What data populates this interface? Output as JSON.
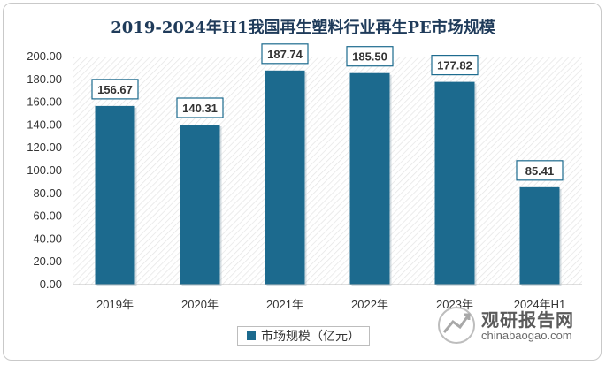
{
  "chart_data": {
    "type": "bar",
    "title": "2019-2024年H1我国再生塑料行业再生PE市场规模",
    "categories": [
      "2019年",
      "2020年",
      "2021年",
      "2022年",
      "2023年",
      "2024年H1"
    ],
    "series": [
      {
        "name": "市场规模（亿元）",
        "values": [
          156.67,
          140.31,
          187.74,
          185.5,
          177.82,
          85.41
        ],
        "labels": [
          "156.67",
          "140.31",
          "187.74",
          "185.50",
          "177.82",
          "85.41"
        ]
      }
    ],
    "yticks": [
      "0.00",
      "20.00",
      "40.00",
      "60.00",
      "80.00",
      "100.00",
      "120.00",
      "140.00",
      "160.00",
      "180.00",
      "200.00"
    ],
    "ylim": [
      0,
      200
    ],
    "legend_position": "bottom",
    "grid": false,
    "background": "hatched",
    "bar_color": "#1c6a8e"
  },
  "watermark": {
    "name": "观研报告网",
    "url": "chinabaogao.com"
  }
}
